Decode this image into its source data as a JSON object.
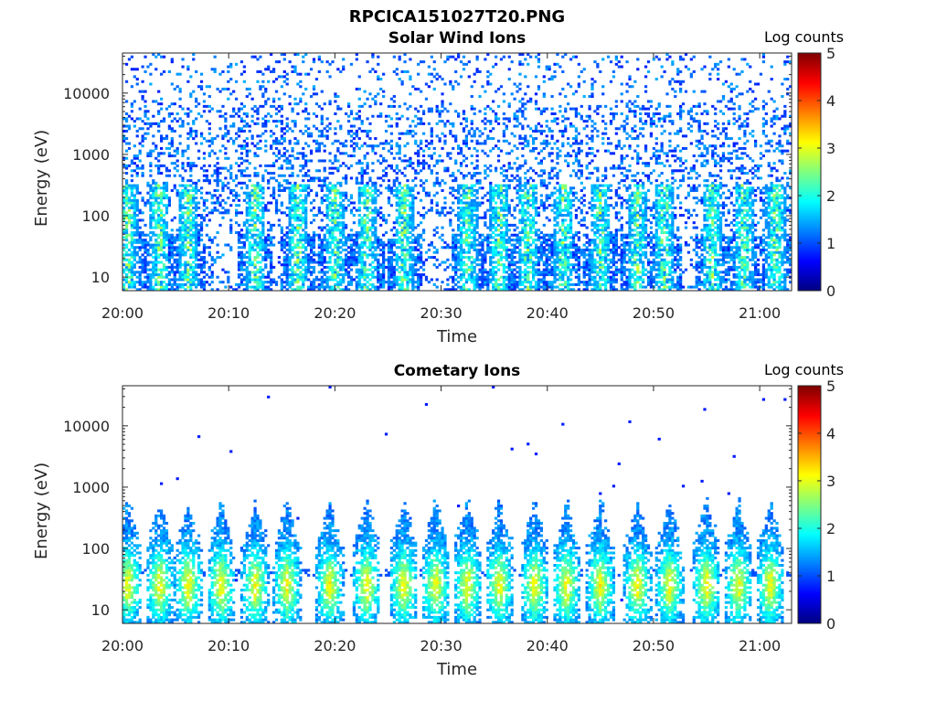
{
  "figure": {
    "title": "RPCICA151027T20.PNG"
  },
  "chart_data": [
    {
      "type": "heatmap",
      "title": "Solar Wind Ions",
      "xlabel": "Time",
      "ylabel": "Energy (eV)",
      "colorbar_label": "Log counts",
      "colormap": "jet",
      "color_range": [
        0,
        5
      ],
      "colorbar_ticks": [
        "0",
        "1",
        "2",
        "3",
        "4",
        "5"
      ],
      "y_scale": "log",
      "ylim": [
        6,
        45000
      ],
      "xlim": [
        "20:00",
        "21:03"
      ],
      "x_ticks": [
        "20:00",
        "20:10",
        "20:20",
        "20:30",
        "20:40",
        "20:50",
        "21:00"
      ],
      "y_ticks": [
        10,
        100,
        1000,
        10000
      ],
      "y_tick_labels": [
        "10",
        "100",
        "1000",
        "10000"
      ],
      "description_of_cells": "sparse counts across all energies, log counts mostly 0-1.5",
      "bursts_minutes": [
        0.5,
        3.5,
        6.2,
        12.5,
        16.5,
        20.0,
        23.0,
        26.5,
        32.5,
        35.5,
        38.2,
        41.5,
        45.0,
        48.5,
        51.0,
        55.5,
        58.5,
        61.5
      ],
      "burst_peak_log_counts": 1.8
    },
    {
      "type": "heatmap",
      "title": "Cometary Ions",
      "xlabel": "Time",
      "ylabel": "Energy (eV)",
      "colorbar_label": "Log counts",
      "colormap": "jet",
      "color_range": [
        0,
        5
      ],
      "colorbar_ticks": [
        "0",
        "1",
        "2",
        "3",
        "4",
        "5"
      ],
      "y_scale": "log",
      "ylim": [
        6,
        45000
      ],
      "xlim": [
        "20:00",
        "21:03"
      ],
      "x_ticks": [
        "20:00",
        "20:10",
        "20:20",
        "20:30",
        "20:40",
        "20:50",
        "21:00"
      ],
      "y_ticks": [
        10,
        100,
        1000,
        10000
      ],
      "y_tick_labels": [
        "10",
        "100",
        "1000",
        "10000"
      ],
      "description_of_cells": "periodic ion bursts at 10-500 eV, peaking ~2.5-3 log counts near 20-30 eV",
      "bursts_minutes": [
        0.5,
        3.5,
        6.2,
        9.3,
        12.5,
        15.5,
        19.5,
        23.0,
        26.5,
        29.5,
        32.5,
        35.5,
        38.8,
        41.8,
        45.0,
        48.5,
        51.5,
        55.0,
        58.0,
        61.0
      ],
      "burst_peak_log_counts": 2.9,
      "burst_peak_energy_eV": 25
    }
  ]
}
